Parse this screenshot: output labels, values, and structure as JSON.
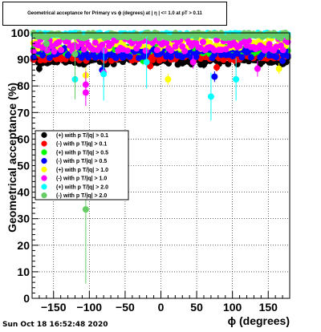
{
  "chart_data": {
    "type": "scatter",
    "title": "Geometrical acceptance for Primary vs ϕ (degrees) at | η | <= 1.0 at pT > 0.11",
    "xlabel": "ϕ (degrees)",
    "ylabel": "Geometrical acceptance (%)",
    "xlim": [
      -180,
      180
    ],
    "ylim": [
      0,
      100
    ],
    "xticks": [
      -150,
      -100,
      -50,
      0,
      50,
      100,
      150
    ],
    "yticks": [
      0,
      10,
      20,
      30,
      40,
      50,
      60,
      70,
      80,
      90,
      100
    ],
    "grid": true,
    "legend_position": "middle-left",
    "series": [
      {
        "name": "(+) with p T/|q| > 0.1",
        "color": "#000000",
        "center": 89.5,
        "spread": 1.5,
        "outliers": [
          [
            -170,
            86.5,
            1.5
          ],
          [
            -145,
            89.0,
            1.2
          ],
          [
            60,
            88.0,
            1.5
          ],
          [
            175,
            89.0,
            1.0
          ]
        ]
      },
      {
        "name": "(-) with p T/|q| > 0.1",
        "color": "#ff0000",
        "center": 91.0,
        "spread": 1.5,
        "outliers": [
          [
            -15,
            87.5,
            1.5
          ],
          [
            78,
            87.0,
            1.5
          ]
        ]
      },
      {
        "name": "(+) with p T/|q| > 0.5",
        "color": "#00ff00",
        "center": 93.5,
        "spread": 1.5,
        "outliers": [
          [
            -25,
            89.5,
            1.5
          ]
        ]
      },
      {
        "name": "(-) with p T/|q| > 0.5",
        "color": "#0000ff",
        "center": 92.5,
        "spread": 2.0,
        "outliers": [
          [
            -82,
            86.0,
            2.0
          ],
          [
            -25,
            93.0,
            1.5
          ],
          [
            75,
            83.5,
            2.0
          ],
          [
            170,
            89.5,
            1.5
          ]
        ]
      },
      {
        "name": "(+) with p T/|q| > 1.0",
        "color": "#ffff00",
        "center": 96.0,
        "spread": 2.0,
        "outliers": [
          [
            -105,
            84.0,
            3.0
          ],
          [
            10,
            82.5,
            2.0
          ],
          [
            165,
            86.5,
            2.0
          ]
        ]
      },
      {
        "name": "(-) with p T/|q| > 1.0",
        "color": "#ff00ff",
        "center": 95.5,
        "spread": 2.5,
        "outliers": [
          [
            -105,
            80.5,
            5.0
          ],
          [
            -105,
            77.5,
            5.0
          ],
          [
            -80,
            85.0,
            3.0
          ],
          [
            45,
            89.0,
            2.5
          ],
          [
            135,
            86.5,
            3.0
          ]
        ]
      },
      {
        "name": "(+) with p T/|q| > 2.0",
        "color": "#00ffff",
        "center": 99.5,
        "spread": 0.5,
        "outliers": [
          [
            -120,
            82.5,
            6.0
          ],
          [
            -80,
            84.5,
            10.0
          ],
          [
            -20,
            89.0,
            10.0
          ],
          [
            70,
            76.0,
            9.0
          ],
          [
            105,
            82.5,
            8.0
          ]
        ]
      },
      {
        "name": "(-) with p T/|q| > 2.0",
        "color": "#66cc66",
        "center": 99.0,
        "spread": 1.0,
        "outliers": [
          [
            -105,
            33.5,
            28.0
          ],
          [
            -160,
            96.0,
            3.0
          ],
          [
            -120,
            92.0,
            17.0
          ]
        ]
      }
    ]
  },
  "footer_text": "Sun Oct 18 16:52:48 2020"
}
